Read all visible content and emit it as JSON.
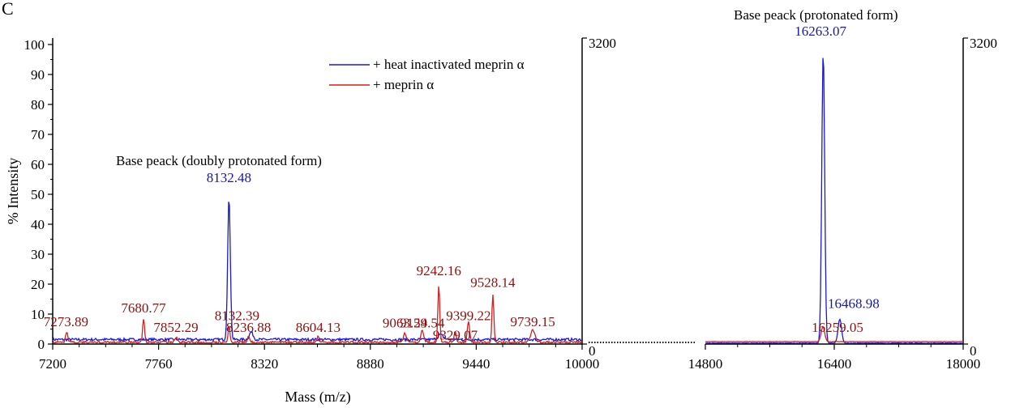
{
  "chart_data": {
    "type": "line",
    "panel_letter": "C",
    "xlabel": "Mass (m/z)",
    "ylabel": "% Intensity",
    "y_left_ticks": [
      "0",
      "10",
      "20",
      "30",
      "40",
      "50",
      "60",
      "70",
      "80",
      "90",
      "100"
    ],
    "y_right_ticks": [
      "0",
      "3200"
    ],
    "ylim": [
      0,
      100
    ],
    "left_panel": {
      "xlim": [
        7200,
        10000
      ],
      "x_ticks": [
        "7200",
        "7760",
        "8320",
        "8880",
        "9440",
        "10000"
      ],
      "title": "Base peack (doubly protonated form)"
    },
    "right_panel": {
      "xlim": [
        14800,
        18000
      ],
      "x_ticks": [
        "14800",
        "16400",
        "18000"
      ],
      "title": "Base peack (protonated form)"
    },
    "series": [
      {
        "name": "+ heat inactivated meprin α",
        "color": "#1a1acc",
        "baseline_left": 1.5,
        "baseline_right": 0.3,
        "peaks": [
          {
            "x": 8132.48,
            "y": 47.5,
            "w": 7,
            "label": "8132.48",
            "lx": 8132,
            "ly": 54
          },
          {
            "x": 8250,
            "y": 2.5,
            "w": 10,
            "label": null
          },
          {
            "x": 9250,
            "y": 1.6,
            "w": 15,
            "label": null
          },
          {
            "x": 16263.07,
            "y": 97.5,
            "w": 18,
            "label": "16263.07",
            "lx": 16230,
            "ly": 103
          },
          {
            "x": 16468.98,
            "y": 8,
            "w": 22,
            "label": "16468.98",
            "lx": 16640,
            "ly": 12
          }
        ]
      },
      {
        "name": "+ meprin α",
        "color": "#cc2222",
        "baseline_left": 0.6,
        "baseline_right": 0.8,
        "peaks": [
          {
            "x": 7273.89,
            "y": 3.5,
            "w": 6,
            "label": "7273.89",
            "lx": 7270,
            "ly": 6
          },
          {
            "x": 7680.77,
            "y": 8,
            "w": 5,
            "label": "7680.77",
            "lx": 7680,
            "ly": 10.5
          },
          {
            "x": 7852.29,
            "y": 1.5,
            "w": 8,
            "label": "7852.29",
            "lx": 7852,
            "ly": 4
          },
          {
            "x": 8132.39,
            "y": 5.5,
            "w": 5,
            "label": "8132.39",
            "lx": 8175,
            "ly": 8
          },
          {
            "x": 8236.88,
            "y": 2,
            "w": 6,
            "label": "8236.88",
            "lx": 8236,
            "ly": 4
          },
          {
            "x": 8604.13,
            "y": 2,
            "w": 6,
            "label": "8604.13",
            "lx": 8604,
            "ly": 4
          },
          {
            "x": 9063.29,
            "y": 3,
            "w": 8,
            "label": "9063.29",
            "lx": 9063,
            "ly": 5.5
          },
          {
            "x": 9154.54,
            "y": 4,
            "w": 8,
            "label": "9154.54",
            "lx": 9154,
            "ly": 5.5
          },
          {
            "x": 9242.16,
            "y": 19,
            "w": 5,
            "label": "9242.16",
            "lx": 9242,
            "ly": 23
          },
          {
            "x": 9329.07,
            "y": 3.5,
            "w": 6,
            "label": "9329.07",
            "lx": 9329,
            "ly": 1.5
          },
          {
            "x": 9399.22,
            "y": 7,
            "w": 6,
            "label": "9399.22",
            "lx": 9399,
            "ly": 8
          },
          {
            "x": 9528.14,
            "y": 16,
            "w": 5,
            "label": "9528.14",
            "lx": 9528,
            "ly": 19
          },
          {
            "x": 9739.15,
            "y": 4,
            "w": 12,
            "label": "9739.15",
            "lx": 9739,
            "ly": 6
          },
          {
            "x": 16259.05,
            "y": 5,
            "w": 22,
            "label": "16259.05",
            "lx": 16440,
            "ly": 4
          }
        ]
      }
    ]
  }
}
